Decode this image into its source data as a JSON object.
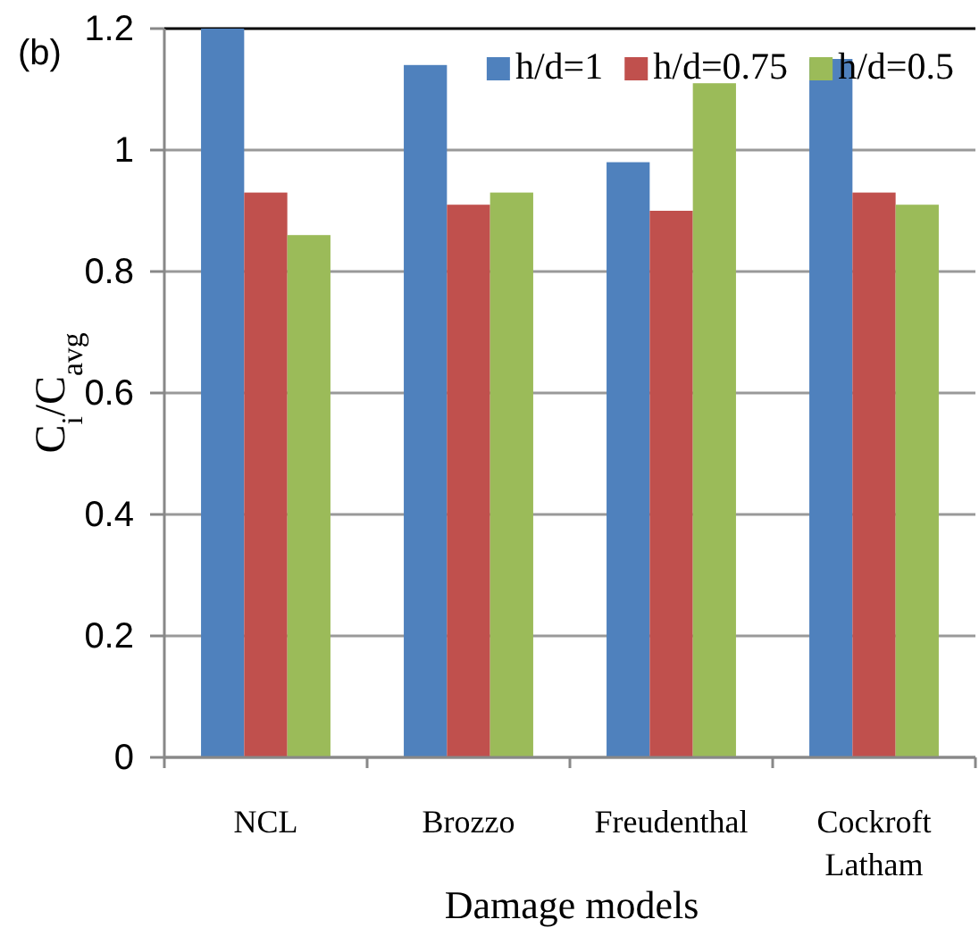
{
  "chart_data": {
    "type": "bar",
    "xlabel": "Damage models",
    "ylabel": "C$_{i}$/C$_{avg}$",
    "annotations": [
      "(b)"
    ],
    "categories": [
      "NCL",
      "Brozzo",
      "Freudenthal",
      "Cockroft Latham"
    ],
    "series": [
      {
        "name": "h/d=1",
        "color": "#4f81bd",
        "values": [
          1.2,
          1.14,
          0.98,
          1.15
        ]
      },
      {
        "name": "h/d=0.75",
        "color": "#c0504d",
        "values": [
          0.93,
          0.91,
          0.9,
          0.93
        ]
      },
      {
        "name": "h/d=0.5",
        "color": "#9bbb59",
        "values": [
          0.86,
          0.93,
          1.11,
          0.91
        ]
      }
    ],
    "ylim": [
      0,
      1.2
    ],
    "yticks": [
      0,
      {
        "value": 0.2,
        "label": "0.2"
      },
      {
        "value": 0.4,
        "label": "0.4"
      },
      {
        "value": 0.6,
        "label": "0.6"
      },
      {
        "value": 0.8,
        "label": "0.8"
      },
      1,
      {
        "value": 1.2,
        "label": "1.2"
      }
    ],
    "grid": "y",
    "legend": "top right"
  }
}
